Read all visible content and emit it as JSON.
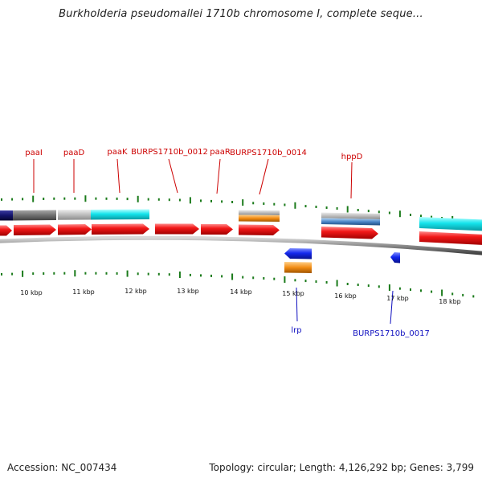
{
  "title": "Burkholderia pseudomallei 1710b chromosome I, complete seque...",
  "footer": {
    "accession": "Accession: NC_007434",
    "summary": "Topology: circular; Length: 4,126,292 bp; Genes: 3,799"
  },
  "colors": {
    "gene_label": "#cc0000",
    "minus_label": "#1010c0",
    "tick": "#1a7a1a",
    "gene_red": "#ee1111",
    "cds_cyan": "#11e0e8",
    "cds_gray": "#b8b8b8",
    "cds_darkgray": "#6e6e6e",
    "cds_navy": "#101060",
    "orange": "#f08c10",
    "steel": "#4a86c8",
    "blue": "#1020e8",
    "backbone": "#888888"
  },
  "axis_labels": [
    "10 kbp",
    "11 kbp",
    "12 kbp",
    "13 kbp",
    "14 kbp",
    "15 kbp",
    "16 kbp",
    "17 kbp",
    "18 kbp"
  ],
  "genes_above": [
    "paaI",
    "paaD",
    "paaK",
    "BURPS1710b_0012",
    "paaR",
    "BURPS1710b_0014",
    "hppD"
  ],
  "genes_below": [
    "lrp",
    "BURPS1710b_0017"
  ]
}
